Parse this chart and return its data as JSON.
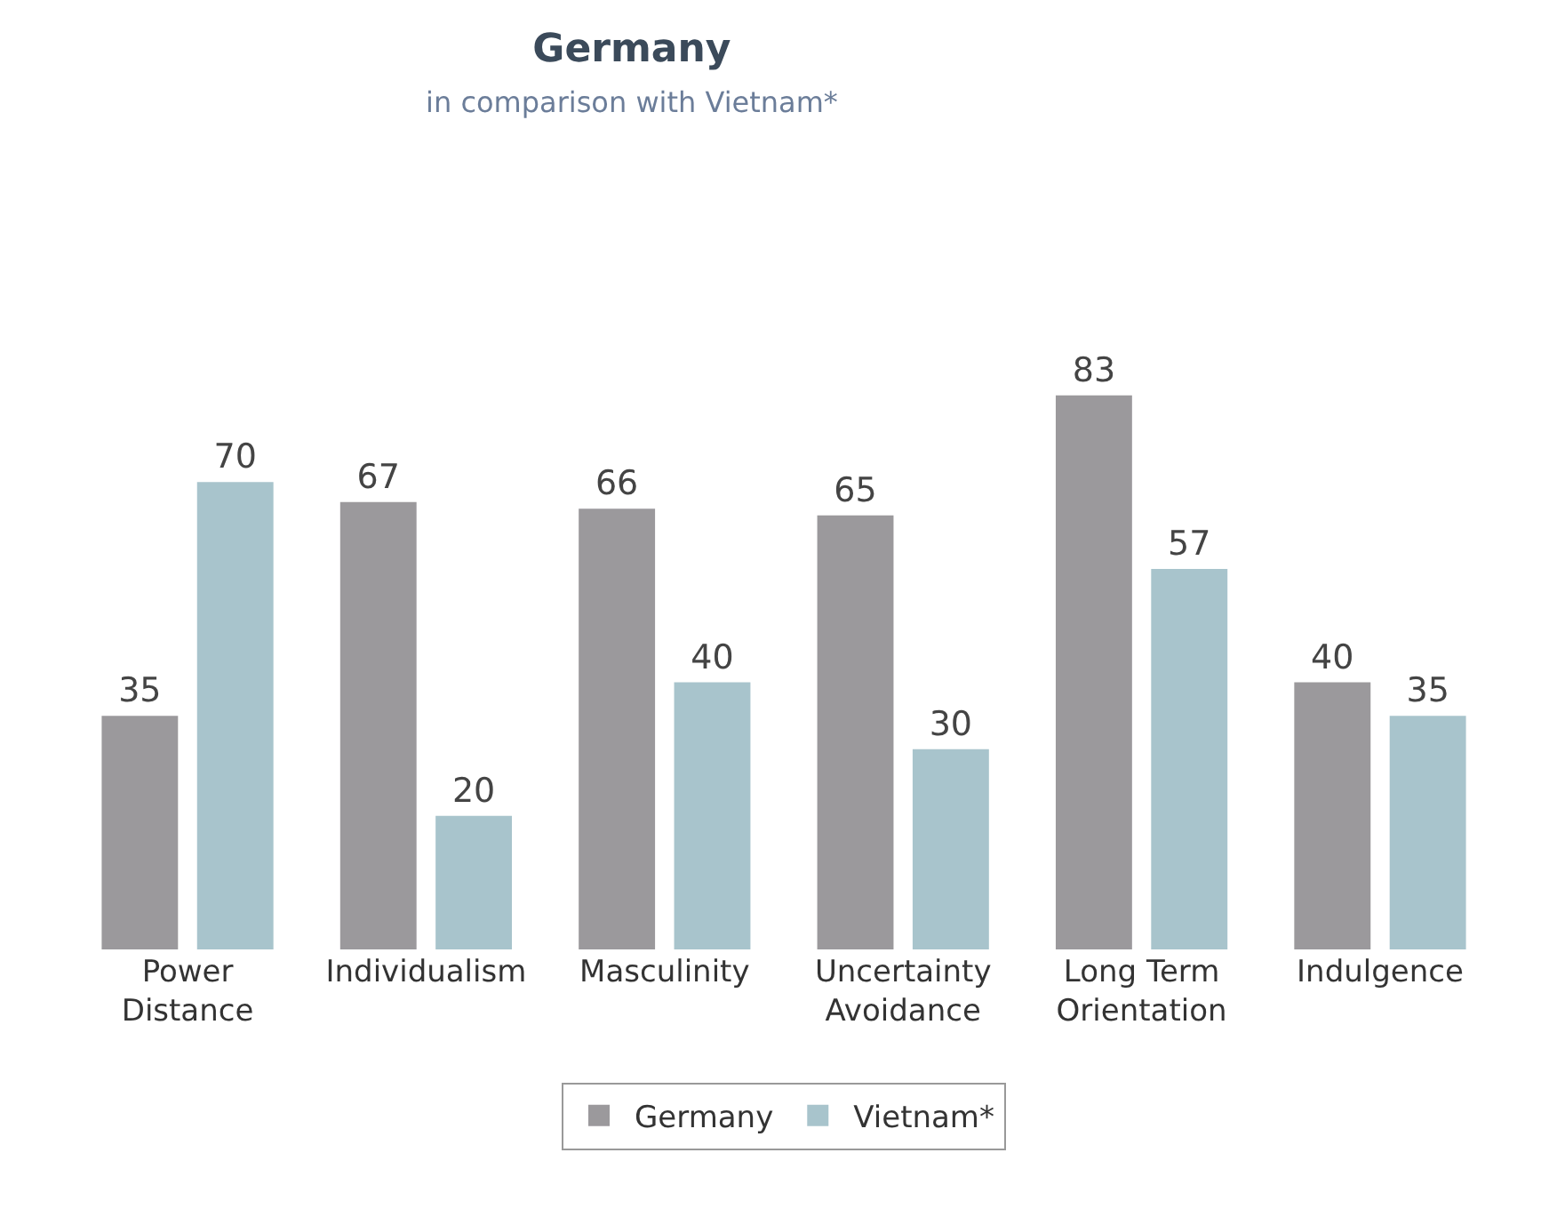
{
  "chart_data": {
    "type": "bar",
    "title": "Germany",
    "subtitle": "in comparison with Vietnam*",
    "categories": [
      "Power Distance",
      "Individualism",
      "Masculinity",
      "Uncertainty Avoidance",
      "Long Term Orientation",
      "Indulgence"
    ],
    "series": [
      {
        "name": "Germany",
        "color": "#9b999c",
        "values": [
          35,
          67,
          66,
          65,
          83,
          40
        ]
      },
      {
        "name": "Vietnam*",
        "color": "#a8c4cc",
        "values": [
          70,
          20,
          40,
          30,
          57,
          35
        ]
      }
    ],
    "data_labels": true,
    "legend": "bottom"
  }
}
